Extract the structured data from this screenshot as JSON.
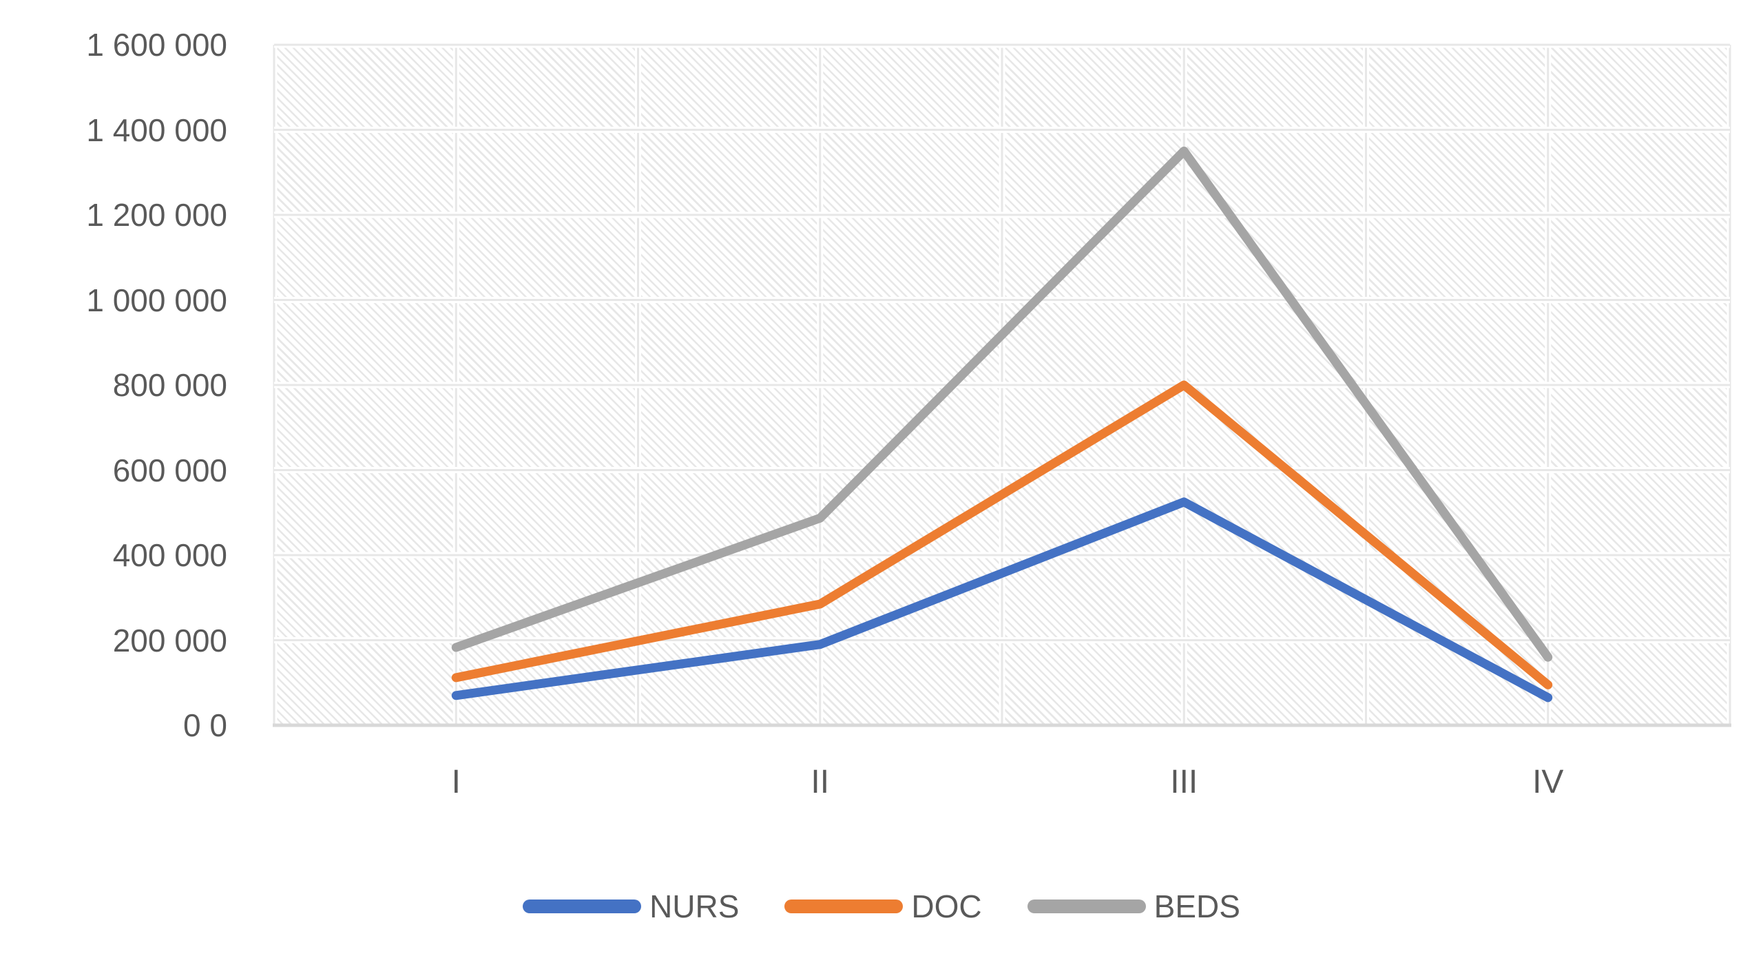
{
  "chart_data": {
    "type": "line",
    "categories": [
      "I",
      "II",
      "III",
      "IV"
    ],
    "series": [
      {
        "name": "NURS",
        "color": "#4472C4",
        "values": [
          70000,
          190000,
          525000,
          65000
        ]
      },
      {
        "name": "DOC",
        "color": "#ED7D31",
        "values": [
          112000,
          285000,
          800000,
          95000
        ]
      },
      {
        "name": "BEDS",
        "color": "#A5A5A5",
        "values": [
          183000,
          487000,
          1350000,
          160000
        ]
      }
    ],
    "title": "",
    "xlabel": "",
    "ylabel": "",
    "ylim": [
      0,
      1600000
    ],
    "yticks": [
      {
        "label": "1 600 000",
        "value": 1600000
      },
      {
        "label": "1 400 000",
        "value": 1400000
      },
      {
        "label": "1 200 000",
        "value": 1200000
      },
      {
        "label": "1 000 000",
        "value": 1000000
      },
      {
        "label": "800 000",
        "value": 800000
      },
      {
        "label": "600 000",
        "value": 600000
      },
      {
        "label": "400 000",
        "value": 400000
      },
      {
        "label": "200 000",
        "value": 200000
      },
      {
        "label": "0 0",
        "value": 0
      }
    ],
    "legend": {
      "position": "bottom",
      "entries": [
        "NURS",
        "DOC",
        "BEDS"
      ]
    },
    "grid": {
      "horizontal": true,
      "vertical": true,
      "vertical_intervals": 8,
      "plot_background": "diagonal-hatch"
    },
    "colors": {
      "text": "#595959",
      "gridline": "#e7e7e7",
      "gridline_lane": "#ffffff",
      "axis_line": "#d8d8d8",
      "hatch": "#e7e7e7",
      "background": "#ffffff"
    },
    "line_width": 13
  }
}
